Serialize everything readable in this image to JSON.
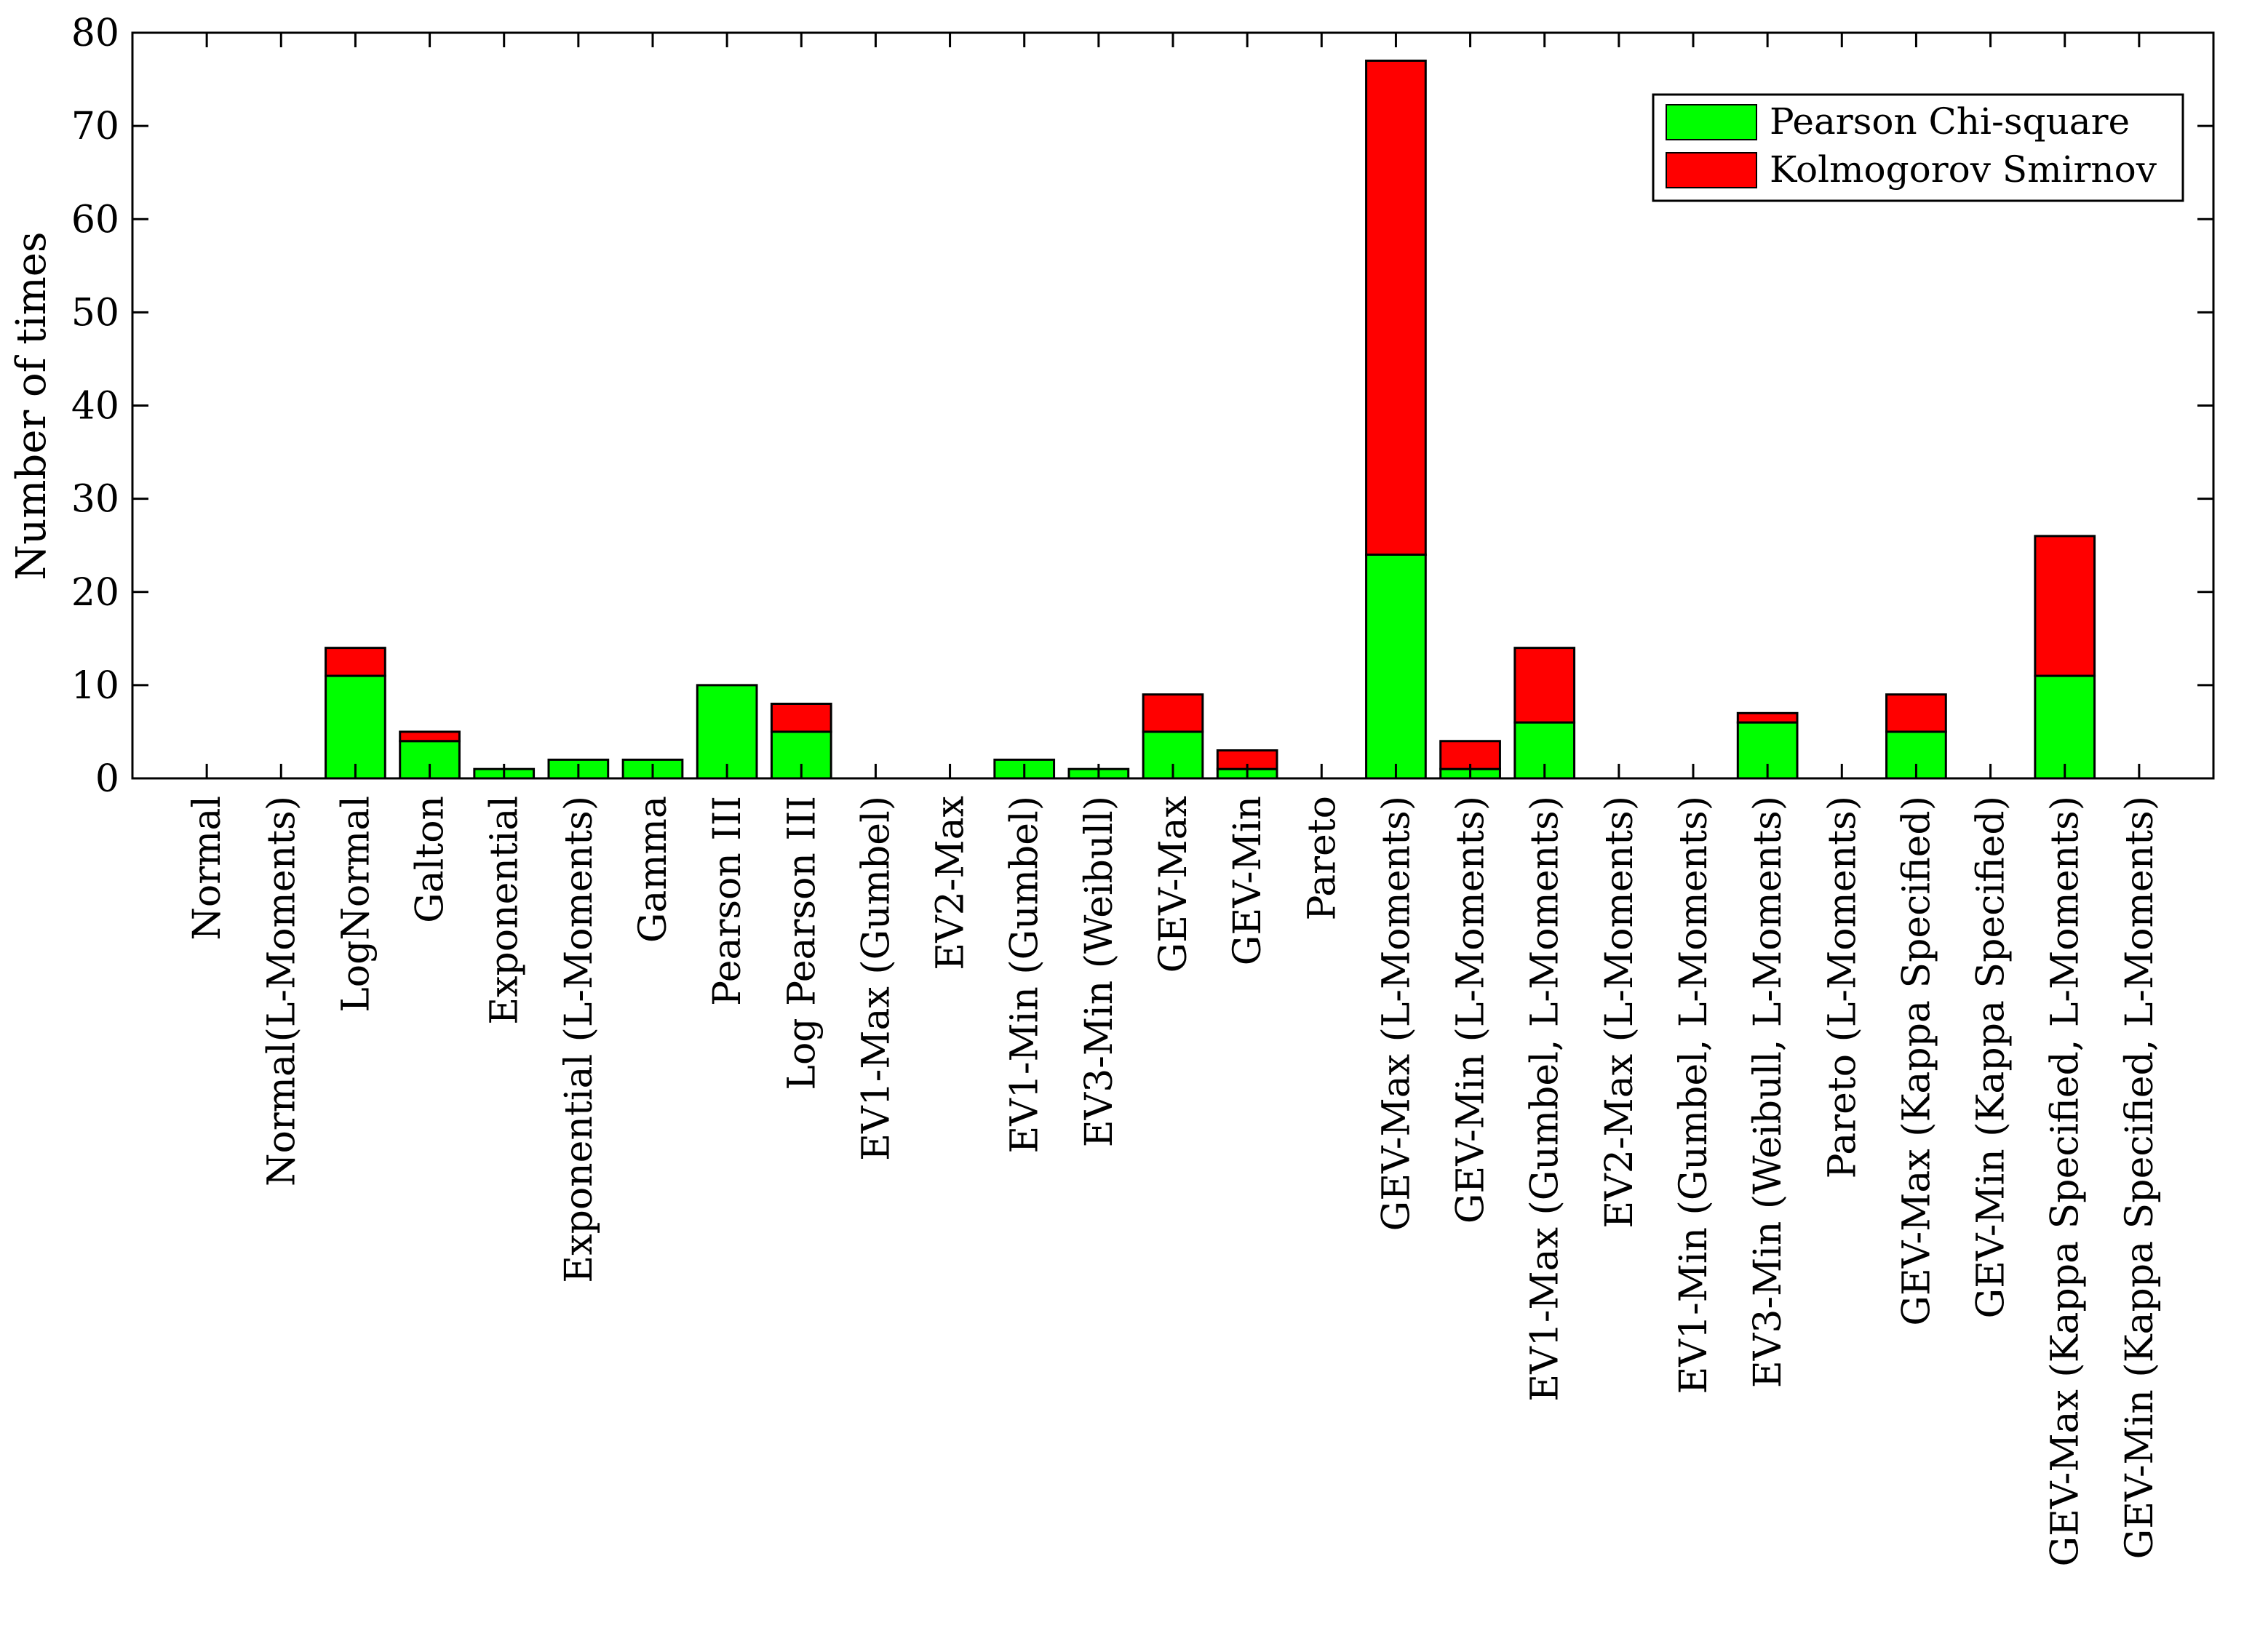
{
  "chart_data": {
    "type": "bar",
    "stacked": true,
    "title": "",
    "xlabel": "",
    "ylabel": "Number of times",
    "ylim": [
      0,
      80
    ],
    "yticks": [
      0,
      10,
      20,
      30,
      40,
      50,
      60,
      70,
      80
    ],
    "grid": false,
    "legend_position": "top-right",
    "categories": [
      "Normal",
      "Normal(L-Moments)",
      "LogNormal",
      "Galton",
      "Exponential",
      "Exponential (L-Moments)",
      "Gamma",
      "Pearson III",
      "Log Pearson III",
      "EV1-Max (Gumbel)",
      "EV2-Max",
      "EV1-Min (Gumbel)",
      "EV3-Min (Weibull)",
      "GEV-Max",
      "GEV-Min",
      "Pareto",
      "GEV-Max (L-Moments)",
      "GEV-Min (L-Moments)",
      "EV1-Max (Gumbel, L-Moments)",
      "EV2-Max (L-Moments)",
      "EV1-Min (Gumbel, L-Moments)",
      "EV3-Min (Weibull, L-Moments)",
      "Pareto (L-Moments)",
      "GEV-Max (Kappa Specified)",
      "GEV-Min (Kappa Specified)",
      "GEV-Max (Kappa Specified, L-Moments)",
      "GEV-Min (Kappa Specified, L-Moments)"
    ],
    "series": [
      {
        "name": "Pearson Chi-square",
        "color": "#00ff00",
        "values": [
          0,
          0,
          11,
          4,
          1,
          2,
          2,
          10,
          5,
          0,
          0,
          2,
          1,
          5,
          1,
          0,
          24,
          1,
          6,
          0,
          0,
          6,
          0,
          5,
          0,
          11,
          0
        ]
      },
      {
        "name": "Kolmogorov Smirnov",
        "color": "#ff0000",
        "values": [
          0,
          0,
          3,
          1,
          0,
          0,
          0,
          0,
          3,
          0,
          0,
          0,
          0,
          4,
          2,
          0,
          53,
          3,
          8,
          0,
          0,
          1,
          0,
          4,
          0,
          15,
          0
        ]
      }
    ]
  }
}
